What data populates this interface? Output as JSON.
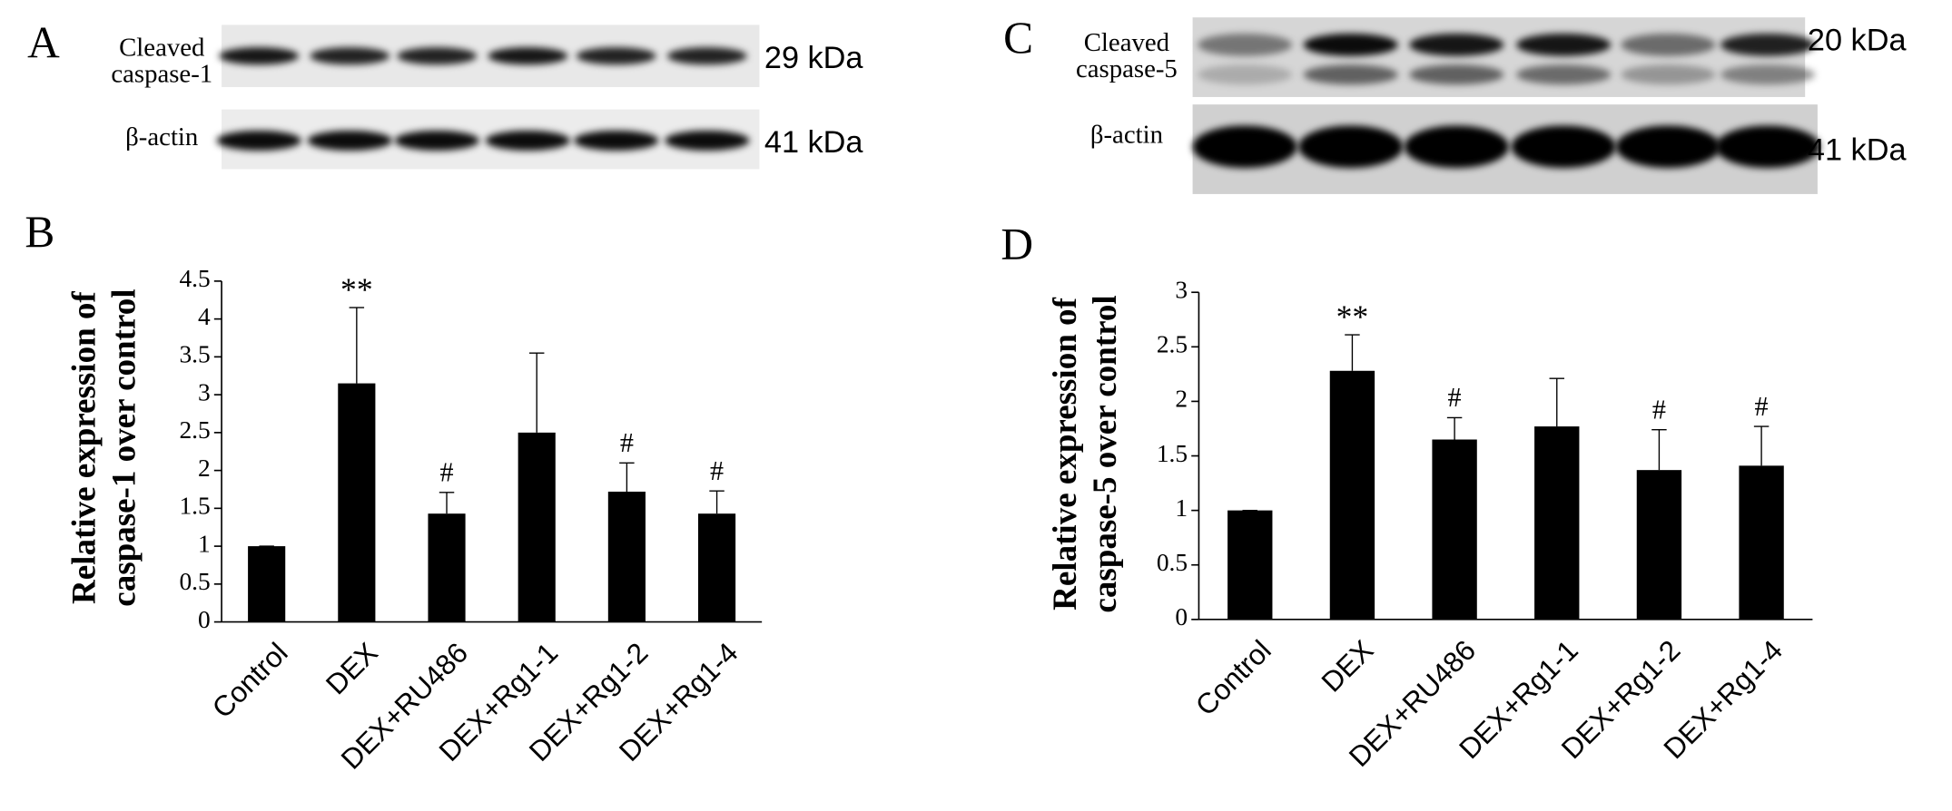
{
  "blots": [
    {
      "letter": "A",
      "rows": [
        {
          "label": [
            "Cleaved",
            "caspase-1"
          ],
          "size": "29  kDa"
        },
        {
          "label": [
            "β-actin"
          ],
          "size": "41  kDa"
        }
      ]
    },
    {
      "letter": "C",
      "rows": [
        {
          "label": [
            "Cleaved",
            "caspase-5"
          ],
          "size": "20 kDa"
        },
        {
          "label": [
            "β-actin"
          ],
          "size": "41 kDa"
        }
      ]
    }
  ],
  "chart_data": [
    {
      "type": "bar",
      "panel": "B",
      "y_label": [
        "Relative expression of",
        "caspase-1 over control"
      ],
      "categories": [
        "Control",
        "DEX",
        "DEX+RU486",
        "DEX+Rg1-1",
        "DEX+Rg1-2",
        "DEX+Rg1-4"
      ],
      "values": [
        1,
        3.15,
        1.43,
        2.5,
        1.72,
        1.43
      ],
      "errors": [
        0,
        1.0,
        0.28,
        1.05,
        0.38,
        0.3
      ],
      "annotations": [
        null,
        "**",
        "#",
        null,
        "#",
        "#"
      ],
      "color": "#000000",
      "ylim": [
        0,
        4.5
      ],
      "yticks": [
        0,
        0.5,
        1,
        1.5,
        2,
        2.5,
        3,
        3.5,
        4,
        4.5
      ],
      "grid": false
    },
    {
      "type": "bar",
      "panel": "D",
      "y_label": [
        "Relative expression of",
        "caspase-5 over control"
      ],
      "categories": [
        "Control",
        "DEX",
        "DEX+RU486",
        "DEX+Rg1-1",
        "DEX+Rg1-2",
        "DEX+Rg1-4"
      ],
      "values": [
        1,
        2.28,
        1.65,
        1.77,
        1.37,
        1.41
      ],
      "errors": [
        0,
        0.33,
        0.2,
        0.44,
        0.37,
        0.36
      ],
      "annotations": [
        null,
        "**",
        "#",
        null,
        "#",
        "#"
      ],
      "color": "#000000",
      "ylim": [
        0,
        3
      ],
      "yticks": [
        0,
        0.5,
        1,
        1.5,
        2,
        2.5,
        3
      ],
      "grid": false
    }
  ]
}
